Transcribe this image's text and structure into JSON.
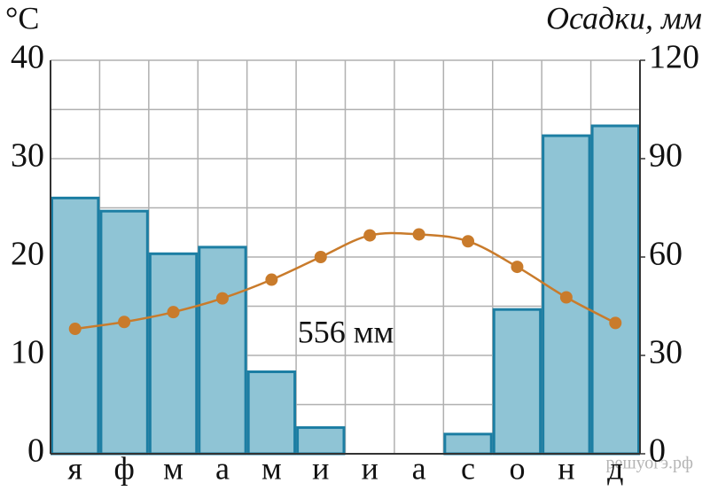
{
  "chart_data": {
    "type": "climate",
    "ylabel": "°C",
    "y2label": "Осадки, мм",
    "annotation": "556 мм",
    "watermark": "решуогэ.рф",
    "categories": [
      "я",
      "ф",
      "м",
      "а",
      "м",
      "и",
      "и",
      "а",
      "с",
      "о",
      "н",
      "д"
    ],
    "series": [
      {
        "type": "bar",
        "axis": "y2",
        "color": "#8fc4d5",
        "edge_color": "#1c7ea3",
        "values": [
          78,
          74,
          61,
          63,
          25,
          8,
          0,
          0,
          6,
          44,
          97,
          100
        ]
      },
      {
        "type": "line",
        "axis": "y",
        "color": "#c97b2b",
        "values": [
          12.7,
          13.4,
          14.4,
          15.8,
          17.7,
          20.0,
          22.2,
          22.3,
          21.6,
          19.0,
          15.9,
          13.3
        ]
      }
    ],
    "ylim": [
      0,
      40
    ],
    "yticks": [
      0,
      10,
      20,
      30,
      40
    ],
    "yminor": [
      5,
      15,
      25,
      35
    ],
    "y2lim": [
      0,
      120
    ],
    "y2ticks": [
      0,
      30,
      60,
      90,
      120
    ],
    "grid": true
  }
}
